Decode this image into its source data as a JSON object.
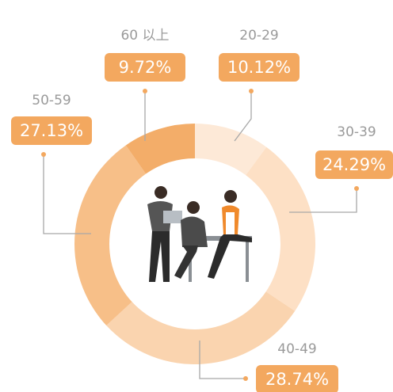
{
  "chart_data": {
    "type": "donut",
    "categories": [
      "20-29",
      "30-39",
      "40-49",
      "50-59",
      "60 以上"
    ],
    "values": [
      10.12,
      24.29,
      28.74,
      27.13,
      9.72
    ],
    "value_labels": [
      "10.12%",
      "24.29%",
      "28.74%",
      "27.13%",
      "9.72%"
    ],
    "colors": [
      "#fde9d7",
      "#fde0c5",
      "#fad4af",
      "#f7bf88",
      "#f3ad69"
    ],
    "label_color": "#f3a85f"
  }
}
